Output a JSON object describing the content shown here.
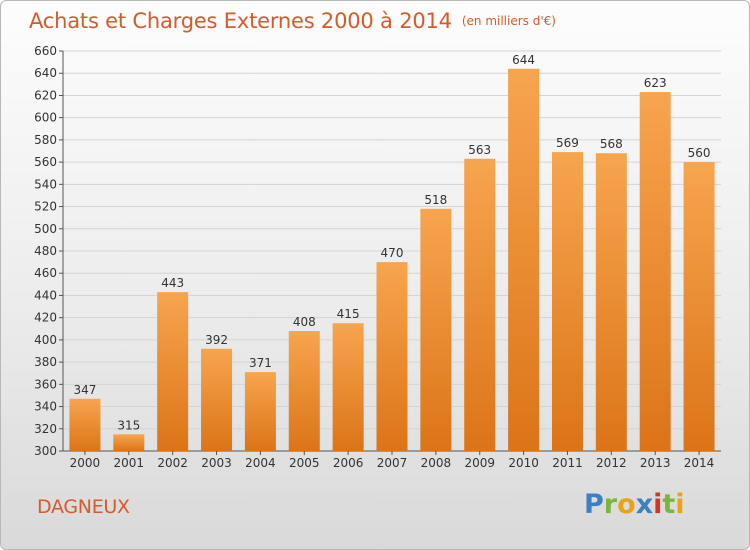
{
  "header": {
    "title": "Achats et Charges Externes 2000 à 2014",
    "subtitle": "(en milliers d'€)"
  },
  "footer": {
    "city": "DAGNEUX",
    "logo_letters": [
      "P",
      "r",
      "o",
      "x",
      "i",
      "t",
      "i"
    ]
  },
  "colors": {
    "title": "#d85a2a",
    "bar_top": "#f7a54f",
    "bar_bottom": "#dc7418",
    "logo": [
      "#3b7fc4",
      "#7ab63b",
      "#e8a317",
      "#3b7fc4",
      "#d6352a",
      "#7ab63b",
      "#e8a317"
    ]
  },
  "chart_data": {
    "type": "bar",
    "title": "Achats et Charges Externes 2000 à 2014",
    "subtitle": "(en milliers d'€)",
    "categories": [
      "2000",
      "2001",
      "2002",
      "2003",
      "2004",
      "2005",
      "2006",
      "2007",
      "2008",
      "2009",
      "2010",
      "2011",
      "2012",
      "2013",
      "2014"
    ],
    "values": [
      347,
      315,
      443,
      392,
      371,
      408,
      415,
      470,
      518,
      563,
      644,
      569,
      568,
      623,
      560
    ],
    "ylim": [
      300,
      660
    ],
    "yticks": [
      300,
      320,
      340,
      360,
      380,
      400,
      420,
      440,
      460,
      480,
      500,
      520,
      540,
      560,
      580,
      600,
      620,
      640,
      660
    ],
    "grid": true,
    "xlabel": "",
    "ylabel": ""
  }
}
